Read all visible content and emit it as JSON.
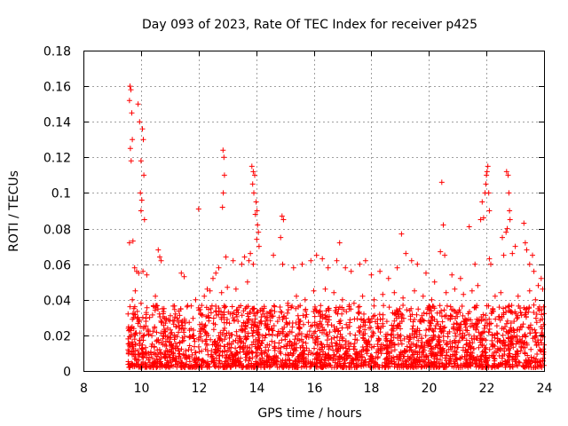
{
  "chart_data": {
    "type": "scatter",
    "title": "Day 093 of 2023, Rate Of TEC Index for receiver p425",
    "xlabel": "GPS time / hours",
    "ylabel": "ROTI / TECUs",
    "xlim": [
      8,
      24
    ],
    "ylim": [
      0,
      0.18
    ],
    "x_ticks": [
      8,
      10,
      12,
      14,
      16,
      18,
      20,
      22,
      24
    ],
    "x_tick_labels": [
      "8",
      "10",
      "12",
      "14",
      "16",
      "18",
      "20",
      "22",
      "24"
    ],
    "y_ticks": [
      0,
      0.02,
      0.04,
      0.06,
      0.08,
      0.1,
      0.12,
      0.14,
      0.16,
      0.18
    ],
    "y_tick_labels": [
      "0",
      "0.02",
      "0.04",
      "0.06",
      "0.08",
      "0.1",
      "0.12",
      "0.14",
      "0.16",
      "0.18"
    ],
    "grid": true,
    "marker": "+",
    "color": "#ff0000",
    "series": [
      {
        "name": "ROTI",
        "points": [
          [
            9.62,
            0.16
          ],
          [
            9.65,
            0.158
          ],
          [
            9.6,
            0.152
          ],
          [
            9.68,
            0.145
          ],
          [
            9.7,
            0.13
          ],
          [
            9.63,
            0.125
          ],
          [
            9.66,
            0.118
          ],
          [
            9.6,
            0.072
          ],
          [
            9.72,
            0.073
          ],
          [
            9.9,
            0.15
          ],
          [
            9.95,
            0.14
          ],
          [
            10.05,
            0.136
          ],
          [
            10.08,
            0.13
          ],
          [
            10.0,
            0.118
          ],
          [
            10.1,
            0.11
          ],
          [
            9.98,
            0.1
          ],
          [
            10.03,
            0.096
          ],
          [
            10.0,
            0.09
          ],
          [
            10.12,
            0.085
          ],
          [
            9.78,
            0.058
          ],
          [
            9.85,
            0.056
          ],
          [
            9.92,
            0.055
          ],
          [
            10.07,
            0.056
          ],
          [
            10.2,
            0.054
          ],
          [
            10.6,
            0.068
          ],
          [
            10.65,
            0.064
          ],
          [
            10.7,
            0.062
          ],
          [
            11.4,
            0.055
          ],
          [
            11.5,
            0.053
          ],
          [
            12.0,
            0.091
          ],
          [
            12.3,
            0.046
          ],
          [
            12.5,
            0.052
          ],
          [
            12.6,
            0.055
          ],
          [
            12.7,
            0.058
          ],
          [
            12.85,
            0.124
          ],
          [
            12.88,
            0.12
          ],
          [
            12.9,
            0.11
          ],
          [
            12.86,
            0.1
          ],
          [
            12.83,
            0.092
          ],
          [
            12.95,
            0.064
          ],
          [
            13.2,
            0.062
          ],
          [
            13.5,
            0.06
          ],
          [
            13.6,
            0.064
          ],
          [
            13.85,
            0.115
          ],
          [
            13.9,
            0.112
          ],
          [
            13.95,
            0.11
          ],
          [
            13.88,
            0.105
          ],
          [
            13.92,
            0.1
          ],
          [
            14.0,
            0.095
          ],
          [
            14.03,
            0.09
          ],
          [
            13.97,
            0.088
          ],
          [
            14.05,
            0.082
          ],
          [
            14.08,
            0.078
          ],
          [
            14.02,
            0.074
          ],
          [
            14.1,
            0.07
          ],
          [
            13.8,
            0.066
          ],
          [
            13.75,
            0.062
          ],
          [
            13.9,
            0.06
          ],
          [
            14.6,
            0.065
          ],
          [
            14.9,
            0.087
          ],
          [
            14.95,
            0.085
          ],
          [
            14.85,
            0.075
          ],
          [
            14.92,
            0.06
          ],
          [
            15.3,
            0.058
          ],
          [
            15.6,
            0.06
          ],
          [
            15.9,
            0.062
          ],
          [
            16.1,
            0.065
          ],
          [
            16.3,
            0.063
          ],
          [
            16.5,
            0.058
          ],
          [
            16.8,
            0.062
          ],
          [
            16.9,
            0.072
          ],
          [
            17.1,
            0.058
          ],
          [
            17.3,
            0.056
          ],
          [
            17.6,
            0.06
          ],
          [
            17.8,
            0.062
          ],
          [
            18.0,
            0.054
          ],
          [
            18.3,
            0.056
          ],
          [
            18.6,
            0.052
          ],
          [
            18.9,
            0.058
          ],
          [
            19.05,
            0.077
          ],
          [
            19.2,
            0.066
          ],
          [
            19.4,
            0.062
          ],
          [
            19.6,
            0.06
          ],
          [
            19.9,
            0.055
          ],
          [
            20.2,
            0.05
          ],
          [
            20.4,
            0.067
          ],
          [
            20.45,
            0.106
          ],
          [
            20.5,
            0.082
          ],
          [
            20.55,
            0.065
          ],
          [
            20.8,
            0.054
          ],
          [
            21.1,
            0.052
          ],
          [
            21.4,
            0.081
          ],
          [
            21.6,
            0.06
          ],
          [
            21.8,
            0.085
          ],
          [
            21.85,
            0.095
          ],
          [
            21.95,
            0.1
          ],
          [
            22.0,
            0.11
          ],
          [
            22.05,
            0.115
          ],
          [
            22.02,
            0.112
          ],
          [
            21.98,
            0.105
          ],
          [
            22.08,
            0.1
          ],
          [
            22.1,
            0.09
          ],
          [
            21.9,
            0.086
          ],
          [
            22.1,
            0.063
          ],
          [
            22.15,
            0.06
          ],
          [
            22.55,
            0.075
          ],
          [
            22.6,
            0.065
          ],
          [
            22.7,
            0.112
          ],
          [
            22.75,
            0.11
          ],
          [
            22.78,
            0.1
          ],
          [
            22.8,
            0.09
          ],
          [
            22.82,
            0.085
          ],
          [
            22.72,
            0.08
          ],
          [
            22.68,
            0.078
          ],
          [
            22.9,
            0.066
          ],
          [
            23.0,
            0.07
          ],
          [
            23.3,
            0.083
          ],
          [
            23.35,
            0.072
          ],
          [
            23.4,
            0.068
          ],
          [
            23.5,
            0.06
          ],
          [
            23.6,
            0.065
          ],
          [
            23.65,
            0.056
          ],
          [
            23.8,
            0.048
          ],
          [
            23.9,
            0.052
          ],
          [
            23.95,
            0.046
          ],
          [
            9.7,
            0.04
          ],
          [
            9.75,
            0.035
          ],
          [
            9.8,
            0.045
          ],
          [
            9.9,
            0.03
          ],
          [
            10.0,
            0.038
          ],
          [
            10.3,
            0.03
          ],
          [
            10.5,
            0.042
          ],
          [
            10.8,
            0.035
          ],
          [
            11.0,
            0.028
          ],
          [
            11.2,
            0.032
          ],
          [
            11.6,
            0.036
          ],
          [
            11.9,
            0.04
          ],
          [
            12.2,
            0.042
          ],
          [
            12.4,
            0.045
          ],
          [
            12.8,
            0.044
          ],
          [
            13.0,
            0.047
          ],
          [
            13.3,
            0.046
          ],
          [
            13.7,
            0.05
          ],
          [
            14.2,
            0.035
          ],
          [
            14.5,
            0.032
          ],
          [
            14.8,
            0.03
          ],
          [
            15.1,
            0.038
          ],
          [
            15.4,
            0.042
          ],
          [
            15.7,
            0.04
          ],
          [
            16.0,
            0.045
          ],
          [
            16.4,
            0.046
          ],
          [
            16.7,
            0.044
          ],
          [
            17.0,
            0.04
          ],
          [
            17.4,
            0.038
          ],
          [
            17.7,
            0.042
          ],
          [
            18.1,
            0.04
          ],
          [
            18.4,
            0.043
          ],
          [
            18.8,
            0.044
          ],
          [
            19.1,
            0.041
          ],
          [
            19.5,
            0.045
          ],
          [
            19.8,
            0.042
          ],
          [
            20.1,
            0.04
          ],
          [
            20.6,
            0.044
          ],
          [
            20.9,
            0.046
          ],
          [
            21.2,
            0.043
          ],
          [
            21.5,
            0.045
          ],
          [
            21.7,
            0.048
          ],
          [
            22.3,
            0.042
          ],
          [
            22.5,
            0.044
          ],
          [
            23.1,
            0.042
          ],
          [
            23.5,
            0.045
          ],
          [
            23.7,
            0.04
          ],
          [
            23.98,
            0.036
          ]
        ],
        "band": {
          "description": "dense cluster of points between 9.5 and 24 hours",
          "x_range": [
            9.55,
            24.0
          ],
          "y_floor": 0.002,
          "typical_high": 0.03
        }
      }
    ]
  }
}
